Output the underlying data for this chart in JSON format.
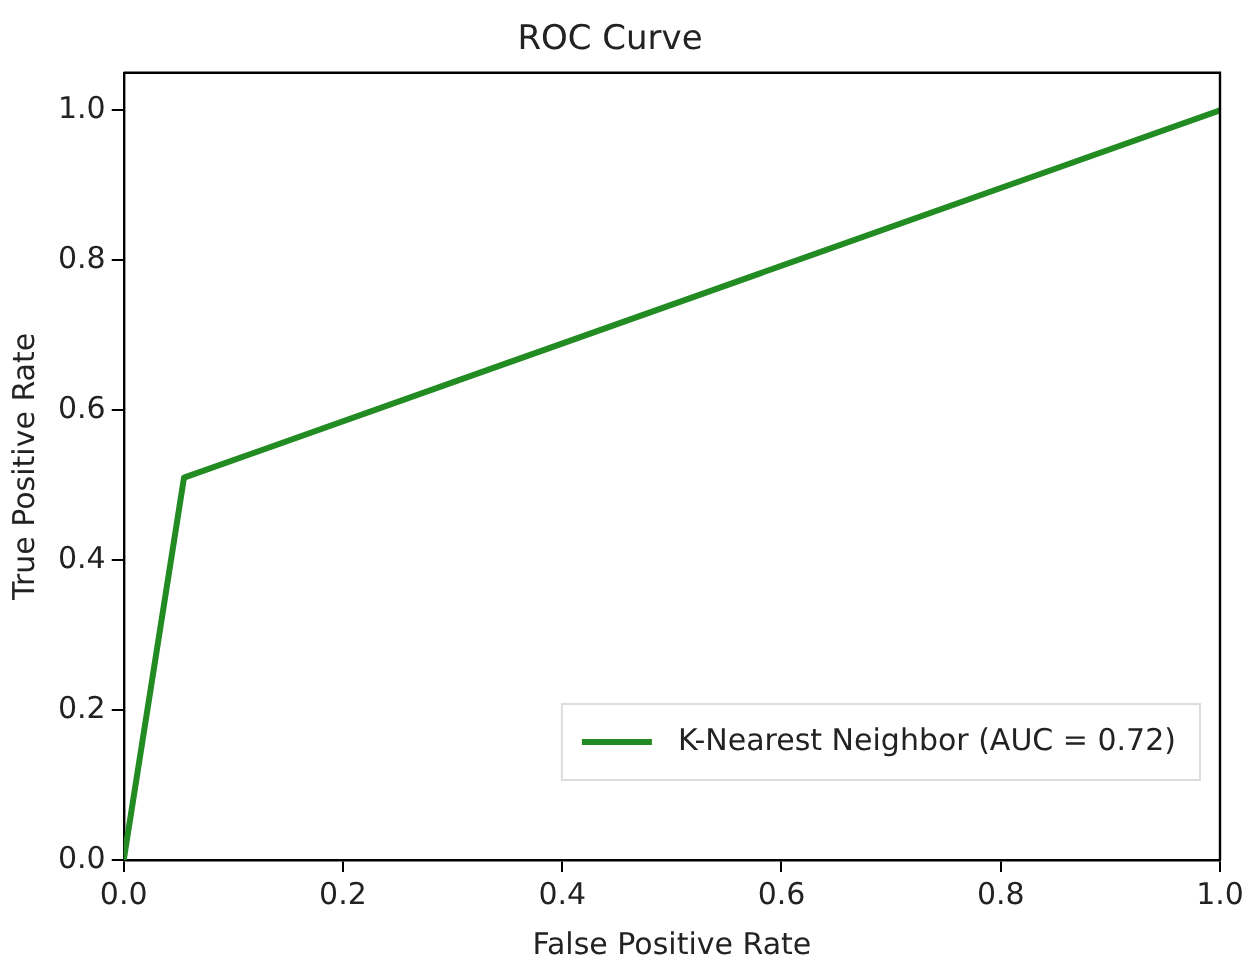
{
  "chart_data": {
    "type": "line",
    "title": "ROC Curve",
    "xlabel": "False Positive Rate",
    "ylabel": "True Positive Rate",
    "x": [
      0,
      0.055,
      1
    ],
    "series": [
      {
        "name": "K-Nearest Neighbor (AUC = 0.72)",
        "color": "#228b22",
        "values": [
          0,
          0.51,
          1
        ]
      }
    ],
    "xlim": [
      0,
      1
    ],
    "xticks": [
      {
        "value": 0,
        "label": "0.0"
      },
      0.2,
      0.4,
      0.6,
      0.8,
      {
        "value": 1,
        "label": "1.0"
      }
    ],
    "ylim": [
      0,
      1.05
    ],
    "yticks": [
      {
        "value": 0,
        "label": "0.0"
      },
      0.2,
      0.4,
      0.6,
      0.8,
      {
        "value": 1,
        "label": "1.0"
      }
    ],
    "grid": false,
    "legend": "bottom right",
    "marker": "none",
    "line_style": "solid"
  }
}
